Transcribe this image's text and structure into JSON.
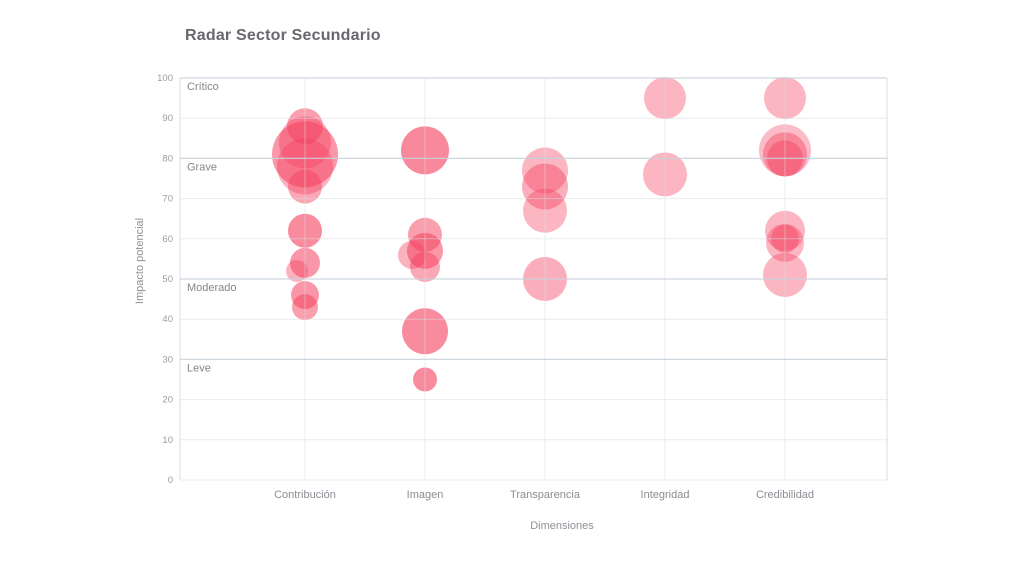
{
  "title": "Radar Sector Secundario",
  "chart_data": {
    "type": "scatter",
    "subtype": "bubble",
    "title": "Radar Sector Secundario",
    "xlabel": "Dimensiones",
    "ylabel": "Impacto potencial",
    "ylim": [
      0,
      100
    ],
    "yticks": [
      0,
      10,
      20,
      30,
      40,
      50,
      60,
      70,
      80,
      90,
      100
    ],
    "grid": true,
    "legend": false,
    "categories": [
      "Contribución",
      "Imagen",
      "Transparencia",
      "Integridad",
      "Credibilidad"
    ],
    "thresholds": [
      {
        "label": "Crítico",
        "value": 100
      },
      {
        "label": "Grave",
        "value": 80
      },
      {
        "label": "Moderado",
        "value": 50
      },
      {
        "label": "Leve",
        "value": 30
      }
    ],
    "series": [
      {
        "name": "Contribución",
        "points": [
          {
            "y": 88,
            "r": 18,
            "o": 0.5
          },
          {
            "y": 84,
            "r": 26,
            "o": 0.4
          },
          {
            "y": 81,
            "r": 33,
            "o": 0.55
          },
          {
            "y": 78,
            "r": 28,
            "o": 0.4
          },
          {
            "y": 73,
            "r": 17,
            "o": 0.45
          },
          {
            "y": 62,
            "r": 17,
            "o": 0.6
          },
          {
            "y": 54,
            "r": 15,
            "o": 0.55
          },
          {
            "y": 52,
            "r": 11,
            "o": 0.4,
            "dx": -8
          },
          {
            "y": 46,
            "r": 14,
            "o": 0.55
          },
          {
            "y": 43,
            "r": 13,
            "o": 0.5
          }
        ]
      },
      {
        "name": "Imagen",
        "points": [
          {
            "y": 82,
            "r": 24,
            "o": 0.62
          },
          {
            "y": 61,
            "r": 17,
            "o": 0.5
          },
          {
            "y": 57,
            "r": 18,
            "o": 0.55
          },
          {
            "y": 56,
            "r": 14,
            "o": 0.4,
            "dx": -13
          },
          {
            "y": 53,
            "r": 15,
            "o": 0.45
          },
          {
            "y": 37,
            "r": 23,
            "o": 0.6
          },
          {
            "y": 25,
            "r": 12,
            "o": 0.6
          }
        ]
      },
      {
        "name": "Transparencia",
        "points": [
          {
            "y": 77,
            "r": 23,
            "o": 0.38
          },
          {
            "y": 73,
            "r": 23,
            "o": 0.42
          },
          {
            "y": 67,
            "r": 22,
            "o": 0.38
          },
          {
            "y": 50,
            "r": 22,
            "o": 0.42
          }
        ]
      },
      {
        "name": "Integridad",
        "points": [
          {
            "y": 95,
            "r": 21,
            "o": 0.38
          },
          {
            "y": 76,
            "r": 22,
            "o": 0.38
          }
        ]
      },
      {
        "name": "Credibilidad",
        "points": [
          {
            "y": 95,
            "r": 21,
            "o": 0.38
          },
          {
            "y": 82,
            "r": 26,
            "o": 0.35
          },
          {
            "y": 81,
            "r": 22,
            "o": 0.42
          },
          {
            "y": 80,
            "r": 18,
            "o": 0.42
          },
          {
            "y": 62,
            "r": 20,
            "o": 0.38
          },
          {
            "y": 59,
            "r": 19,
            "o": 0.38
          },
          {
            "y": 60,
            "r": 14,
            "o": 0.42
          },
          {
            "y": 51,
            "r": 22,
            "o": 0.38
          }
        ]
      }
    ],
    "colors": {
      "bubble": "#f43f5e",
      "gridline": "#e9ebee",
      "threshold_line": "#c6d0da",
      "title_text": "#66686e",
      "tick_text": "#9b9ca2",
      "axis_text": "#8d9096",
      "background": "#ffffff"
    }
  }
}
